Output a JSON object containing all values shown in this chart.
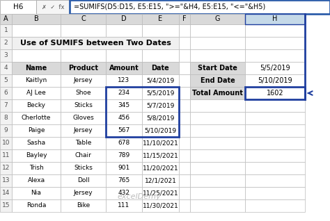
{
  "formula_bar_cell": "H6",
  "formula_bar_formula": "=SUMIFS(D5:D15, E5:E15, \">=\"&H4, E5:E15, \"<=\"&H5)",
  "title": "Use of SUMIFS between Two Dates",
  "col_headers": [
    "Name",
    "Product",
    "Amount",
    "Date"
  ],
  "col_letters_display": [
    "A",
    "B",
    "C",
    "D",
    "E",
    "F",
    "G",
    "H"
  ],
  "table_data": [
    [
      "Kaitlyn",
      "Jersey",
      "123",
      "5/4/2019"
    ],
    [
      "AJ Lee",
      "Shoe",
      "234",
      "5/5/2019"
    ],
    [
      "Becky",
      "Sticks",
      "345",
      "5/7/2019"
    ],
    [
      "Cherlotte",
      "Gloves",
      "456",
      "5/8/2019"
    ],
    [
      "Paige",
      "Jersey",
      "567",
      "5/10/2019"
    ],
    [
      "Sasha",
      "Table",
      "678",
      "11/10/2021"
    ],
    [
      "Bayley",
      "Chair",
      "789",
      "11/15/2021"
    ],
    [
      "Trish",
      "Sticks",
      "901",
      "11/20/2021"
    ],
    [
      "Alexa",
      "Doll",
      "765",
      "12/1/2021"
    ],
    [
      "Nia",
      "Jersey",
      "432",
      "11/25/2021"
    ],
    [
      "Ronda",
      "Bike",
      "111",
      "11/30/2021"
    ]
  ],
  "side_table": [
    [
      "Start Date",
      "5/5/2019"
    ],
    [
      "End Date",
      "5/10/2019"
    ],
    [
      "Total Amount",
      "1602"
    ]
  ],
  "header_bg": "#D9D9D9",
  "cell_bg": "#FFFFFF",
  "side_header_bg": "#D9D9D9",
  "title_bg": "#F0F0F0",
  "formula_bar_bg": "#FFFFFF",
  "formula_bar_border": "#2E5EAA",
  "grid_color": "#BBBBBB",
  "blue_border_color": "#1F3F9F",
  "col_header_bg": "#D9D9D9",
  "row_header_bg": "#F2F2F2",
  "active_col_bg": "#C5D9E8",
  "watermark": "excelDemy",
  "fig_w": 4.74,
  "fig_h": 3.18,
  "dpi": 100
}
